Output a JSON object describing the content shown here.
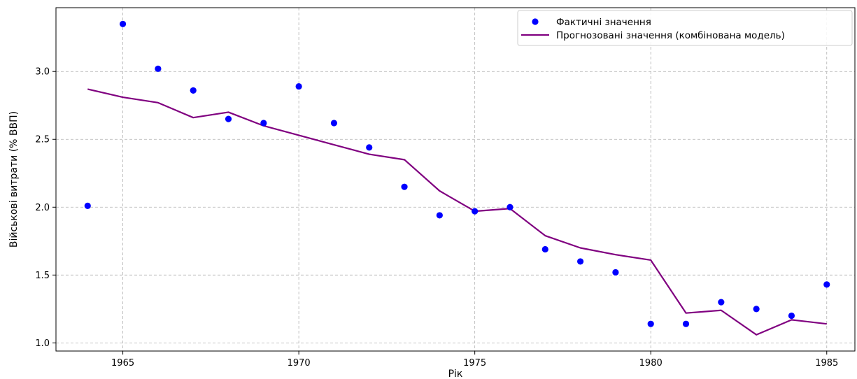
{
  "chart_data": {
    "type": "line",
    "title": "",
    "xlabel": "Рік",
    "ylabel": "Військові витрати (% ВВП)",
    "xlim": [
      1963.1,
      1985.8
    ],
    "ylim": [
      0.94,
      3.47
    ],
    "xticks": [
      1965,
      1970,
      1975,
      1980,
      1985
    ],
    "yticks": [
      1.0,
      1.5,
      2.0,
      2.5,
      3.0
    ],
    "ytick_labels": [
      "1.0",
      "1.5",
      "2.0",
      "2.5",
      "3.0"
    ],
    "grid": true,
    "legend_position": "top-right",
    "x": [
      1964,
      1965,
      1966,
      1967,
      1968,
      1969,
      1970,
      1971,
      1972,
      1973,
      1974,
      1975,
      1976,
      1977,
      1978,
      1979,
      1980,
      1981,
      1982,
      1983,
      1984,
      1985
    ],
    "series": [
      {
        "name": "Фактичні значення",
        "kind": "scatter",
        "color": "#0000ff",
        "values": [
          2.01,
          3.35,
          3.02,
          2.86,
          2.65,
          2.62,
          2.89,
          2.62,
          2.44,
          2.15,
          1.94,
          1.97,
          2.0,
          1.69,
          1.6,
          1.52,
          1.14,
          1.14,
          1.3,
          1.25,
          1.2,
          1.43
        ]
      },
      {
        "name": "Прогнозовані значення (комбінована модель)",
        "kind": "line",
        "color": "#800080",
        "values": [
          2.87,
          2.81,
          2.77,
          2.66,
          2.7,
          2.6,
          2.53,
          2.46,
          2.39,
          2.35,
          2.12,
          1.97,
          1.99,
          1.79,
          1.7,
          1.65,
          1.61,
          1.22,
          1.24,
          1.06,
          1.17,
          1.14
        ]
      }
    ]
  }
}
